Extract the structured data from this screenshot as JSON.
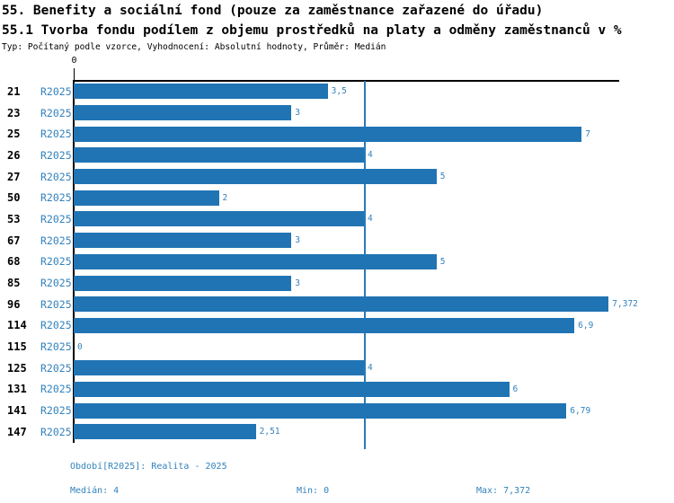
{
  "header": {
    "title": "55. Benefity a sociální fond (pouze za zaměstnance zařazené do úřadu)",
    "subtitle": "55.1 Tvorba fondu podílem z objemu prostředků na platy a odměny zaměstnanců v %",
    "meta": "Typ: Počítaný podle vzorce, Vyhodnocení: Absolutní hodnoty, Průměr: Medián"
  },
  "chart_data": {
    "type": "bar",
    "orientation": "horizontal",
    "series_label": "R2025",
    "categories": [
      "21",
      "23",
      "25",
      "26",
      "27",
      "50",
      "53",
      "67",
      "68",
      "85",
      "96",
      "114",
      "115",
      "125",
      "131",
      "141",
      "147"
    ],
    "values": [
      3.5,
      3,
      7,
      4,
      5,
      2,
      4,
      3,
      5,
      3,
      7.372,
      6.9,
      0,
      4,
      6,
      6.79,
      2.51
    ],
    "value_labels": [
      "3,5",
      "3",
      "7",
      "4",
      "5",
      "2",
      "4",
      "3",
      "5",
      "3",
      "7,372",
      "6,9",
      "0",
      "4",
      "6",
      "6,79",
      "2,51"
    ],
    "axis": {
      "tick_zero_label": "0",
      "xlim": [
        0,
        7.52
      ],
      "grid": false
    },
    "median_value": 4,
    "legend_position": "none"
  },
  "footer": {
    "period": "Období[R2025]: Realita - 2025",
    "median": "Medián: 4",
    "min": "Min: 0",
    "max": "Max: 7,372"
  },
  "colors": {
    "bar": "#2074b4",
    "text_blue": "#3282bd",
    "median_line": "#2b7ab8",
    "axis": "#000000"
  }
}
